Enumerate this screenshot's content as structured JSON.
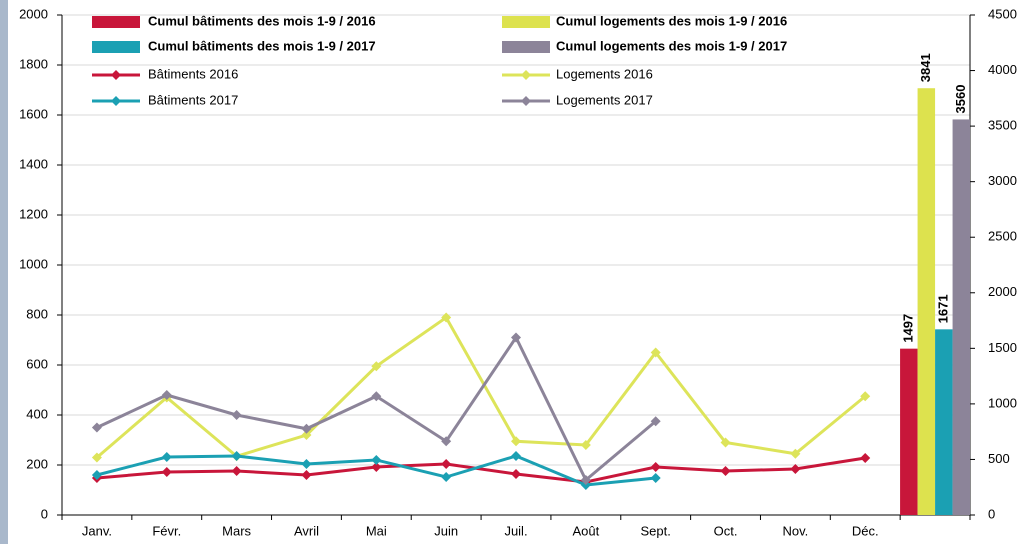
{
  "chart_data": {
    "type": "combo",
    "categories": [
      "Janv.",
      "Févr.",
      "Mars",
      "Avril",
      "Mai",
      "Juin",
      "Juil.",
      "Août",
      "Sept.",
      "Oct.",
      "Nov.",
      "Déc.",
      null
    ],
    "series": [
      {
        "name": "Cumul bâtiments des mois 1-9 / 2016",
        "type": "bar",
        "axis": "y2",
        "color": "#c8163a",
        "values": [
          null,
          null,
          null,
          null,
          null,
          null,
          null,
          null,
          null,
          null,
          null,
          null,
          1497
        ]
      },
      {
        "name": "Cumul logements des mois 1-9 / 2016",
        "type": "bar",
        "axis": "y2",
        "color": "#dde24e",
        "values": [
          null,
          null,
          null,
          null,
          null,
          null,
          null,
          null,
          null,
          null,
          null,
          null,
          3841
        ]
      },
      {
        "name": "Cumul bâtiments des mois 1-9 / 2017",
        "type": "bar",
        "axis": "y2",
        "color": "#1ba0b3",
        "values": [
          null,
          null,
          null,
          null,
          null,
          null,
          null,
          null,
          null,
          null,
          null,
          null,
          1671
        ]
      },
      {
        "name": "Cumul logements des mois 1-9 / 2017",
        "type": "bar",
        "axis": "y2",
        "color": "#8c8499",
        "values": [
          null,
          null,
          null,
          null,
          null,
          null,
          null,
          null,
          null,
          null,
          null,
          null,
          3560
        ]
      },
      {
        "name": "Bâtiments 2016",
        "type": "line",
        "color": "#c8163a",
        "values": [
          148,
          172,
          176,
          160,
          192,
          204,
          164,
          132,
          192,
          176,
          184,
          228,
          null
        ]
      },
      {
        "name": "Logements 2016",
        "type": "line",
        "color": "#dde45a",
        "values": [
          230,
          470,
          235,
          320,
          595,
          790,
          295,
          280,
          650,
          290,
          245,
          475,
          null
        ]
      },
      {
        "name": "Bâtiments 2017",
        "type": "line",
        "color": "#1ba0b3",
        "values": [
          160,
          232,
          236,
          204,
          220,
          152,
          236,
          120,
          148,
          null,
          null,
          null,
          null
        ]
      },
      {
        "name": "Logements 2017",
        "type": "line",
        "color": "#8c8499",
        "values": [
          350,
          480,
          400,
          345,
          475,
          295,
          710,
          140,
          375,
          null,
          null,
          null,
          null
        ]
      }
    ],
    "ylim": [
      0,
      2000
    ],
    "yticks": [
      0,
      200,
      400,
      600,
      800,
      1000,
      1200,
      1400,
      1600,
      1800,
      2000
    ],
    "y2lim": [
      0,
      4500
    ],
    "y2ticks": [
      0,
      500,
      1000,
      1500,
      2000,
      2500,
      3000,
      3500,
      4000,
      4500
    ],
    "grid": true
  }
}
